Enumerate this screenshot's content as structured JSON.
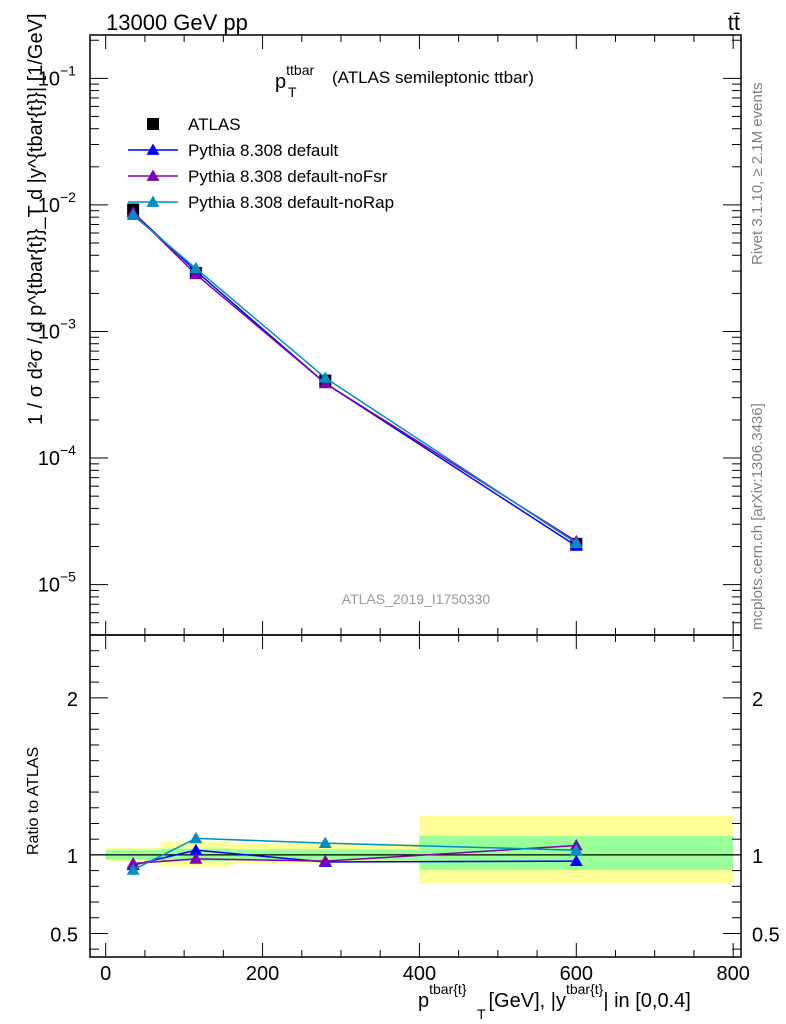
{
  "header": {
    "energy_label": "13000 GeV pp",
    "process_label": "tt̄"
  },
  "side_labels": {
    "rivet": "Rivet 3.1.10, ≥ 2.1M events",
    "mcplots": "mcplots.cern.ch [arXiv:1306.3436]"
  },
  "chart_data": [
    {
      "type": "scatter",
      "title_main": "p",
      "title_sup": "ttbar",
      "title_sub": "T",
      "title_rest": "(ATLAS semileptonic ttbar)",
      "watermark": "ATLAS_2019_I1750330",
      "ylabel": "1 / σ d²σ / d p^{tbar{t}}_T d |y^{tbar{t}}| [1/GeV]",
      "yscale": "log",
      "ylim": [
        4e-06,
        0.22
      ],
      "y_ticks": [
        {
          "value": 0.1,
          "base": "10",
          "exp": "−1"
        },
        {
          "value": 0.01,
          "base": "10",
          "exp": "−2"
        },
        {
          "value": 0.001,
          "base": "10",
          "exp": "−3"
        },
        {
          "value": 0.0001,
          "base": "10",
          "exp": "−4"
        },
        {
          "value": 1e-05,
          "base": "10",
          "exp": "−5"
        }
      ],
      "xlim": [
        -20,
        810
      ],
      "legend_position": "top-left",
      "series": [
        {
          "name": "ATLAS",
          "color": "#000000",
          "marker": "square",
          "x": [
            35,
            115,
            280,
            600
          ],
          "y": [
            0.0092,
            0.0029,
            0.00041,
            2.1e-05
          ]
        },
        {
          "name": "Pythia 8.308 default",
          "color": "#0000ff",
          "marker": "triangle",
          "x": [
            35,
            115,
            280,
            600
          ],
          "y": [
            0.0087,
            0.003,
            0.00039,
            2.02e-05
          ]
        },
        {
          "name": "Pythia 8.308 default-noFsr",
          "color": "#8000b0",
          "marker": "triangle",
          "x": [
            35,
            115,
            280,
            600
          ],
          "y": [
            0.0087,
            0.00283,
            0.00039,
            2.2e-05
          ]
        },
        {
          "name": "Pythia 8.308 default-noRap",
          "color": "#0090c0",
          "marker": "triangle",
          "x": [
            35,
            115,
            280,
            600
          ],
          "y": [
            0.0083,
            0.00315,
            0.00043,
            2.13e-05
          ]
        }
      ]
    },
    {
      "type": "scatter",
      "ylabel": "Ratio to ATLAS",
      "xlabel_main": "p",
      "xlabel_sup": "tbar{t}",
      "xlabel_sub": "T",
      "xlabel_mid": "[GeV], |y",
      "xlabel_sup2": "tbar{t}",
      "xlabel_end": "| in [0,0.4]",
      "ylim": [
        0.35,
        2.4
      ],
      "xlim": [
        -20,
        810
      ],
      "y_ticks": [
        {
          "value": 0.5,
          "label": "0.5"
        },
        {
          "value": 1,
          "label": "1"
        },
        {
          "value": 2,
          "label": "2"
        }
      ],
      "x_ticks": [
        {
          "value": 0,
          "label": "0"
        },
        {
          "value": 200,
          "label": "200"
        },
        {
          "value": 400,
          "label": "400"
        },
        {
          "value": 600,
          "label": "600"
        },
        {
          "value": 800,
          "label": "800"
        }
      ],
      "uncertainty_bands": [
        {
          "x_min": 0,
          "x_max": 70,
          "y1_lo": 0.97,
          "y1_hi": 1.03,
          "y2_lo": 0.96,
          "y2_hi": 1.045
        },
        {
          "x_min": 70,
          "x_max": 160,
          "y1_lo": 0.96,
          "y1_hi": 1.04,
          "y2_lo": 0.925,
          "y2_hi": 1.085
        },
        {
          "x_min": 160,
          "x_max": 400,
          "y1_lo": 0.965,
          "y1_hi": 1.035,
          "y2_lo": 0.945,
          "y2_hi": 1.075
        },
        {
          "x_min": 400,
          "x_max": 800,
          "y1_lo": 0.905,
          "y1_hi": 1.12,
          "y2_lo": 0.815,
          "y2_hi": 1.25
        }
      ],
      "band_colors": {
        "inner": "#99ff99",
        "outer": "#ffff99"
      },
      "series": [
        {
          "name": "Pythia 8.308 default",
          "color": "#0000ff",
          "x": [
            35,
            115,
            280,
            600
          ],
          "y": [
            0.935,
            1.03,
            0.955,
            0.96
          ]
        },
        {
          "name": "Pythia 8.308 default-noFsr",
          "color": "#8000b0",
          "x": [
            35,
            115,
            280,
            600
          ],
          "y": [
            0.945,
            0.975,
            0.96,
            1.06
          ]
        },
        {
          "name": "Pythia 8.308 default-noRap",
          "color": "#0090c0",
          "x": [
            35,
            115,
            280,
            600
          ],
          "y": [
            0.905,
            1.105,
            1.075,
            1.03
          ]
        }
      ]
    }
  ]
}
